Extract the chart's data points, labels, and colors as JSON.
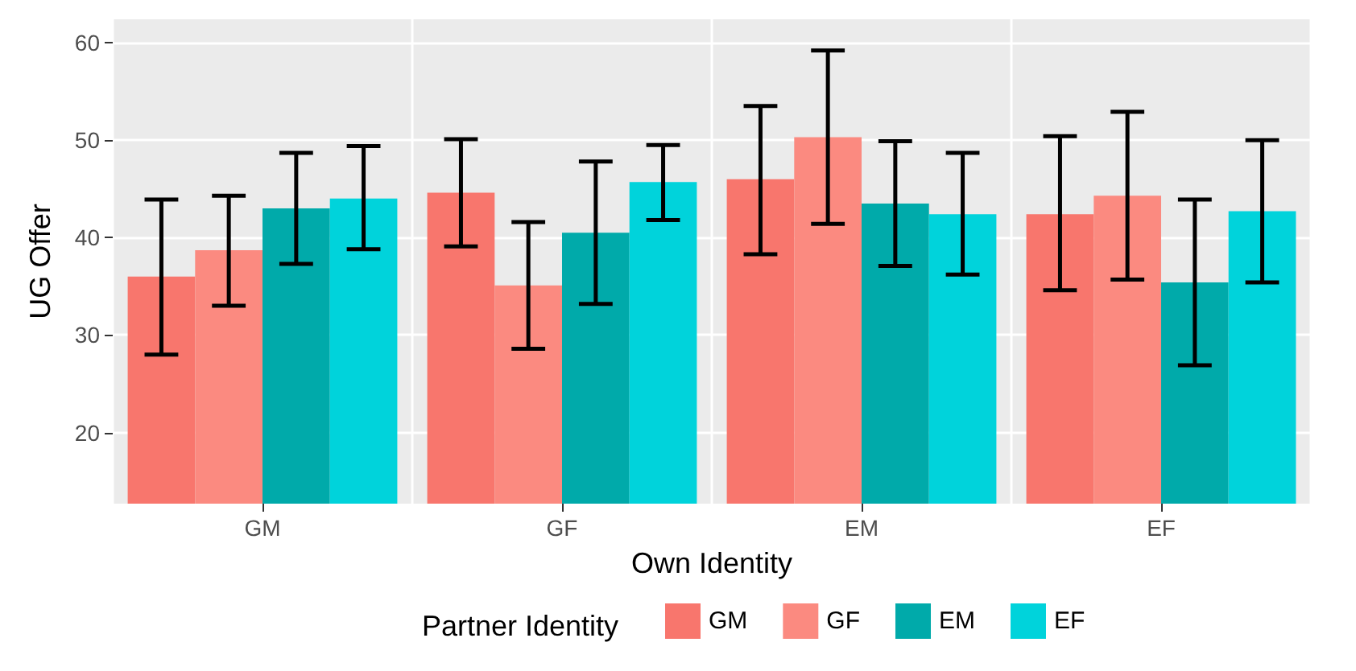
{
  "chart_data": {
    "type": "bar",
    "xlabel": "Own Identity",
    "ylabel": "UG Offer",
    "legend_title": "Partner Identity",
    "categories": [
      "GM",
      "GF",
      "EM",
      "EF"
    ],
    "series": [
      {
        "name": "GM",
        "color": "#f8766d",
        "values": [
          36.0,
          44.6,
          46.0,
          42.4
        ],
        "errors": [
          [
            28.0,
            43.9
          ],
          [
            39.1,
            50.1
          ],
          [
            38.3,
            53.5
          ],
          [
            34.6,
            50.4
          ]
        ]
      },
      {
        "name": "GF",
        "color": "#fb8a80",
        "values": [
          38.7,
          35.1,
          50.3,
          44.3
        ],
        "errors": [
          [
            33.0,
            44.3
          ],
          [
            28.6,
            41.6
          ],
          [
            41.4,
            59.2
          ],
          [
            35.7,
            52.9
          ]
        ]
      },
      {
        "name": "EM",
        "color": "#00aaaa",
        "values": [
          43.0,
          40.5,
          43.5,
          35.4
        ],
        "errors": [
          [
            37.3,
            48.7
          ],
          [
            33.2,
            47.8
          ],
          [
            37.1,
            49.9
          ],
          [
            26.9,
            43.9
          ]
        ]
      },
      {
        "name": "EF",
        "color": "#00d3db",
        "values": [
          44.0,
          45.7,
          42.4,
          42.7
        ],
        "errors": [
          [
            38.8,
            49.4
          ],
          [
            41.8,
            49.5
          ],
          [
            36.2,
            48.7
          ],
          [
            35.4,
            50.0
          ]
        ]
      }
    ],
    "ylim": [
      12.7,
      62.4
    ],
    "yticks": [
      20,
      30,
      40,
      50,
      60
    ],
    "grid": true,
    "legend": "bottom"
  }
}
